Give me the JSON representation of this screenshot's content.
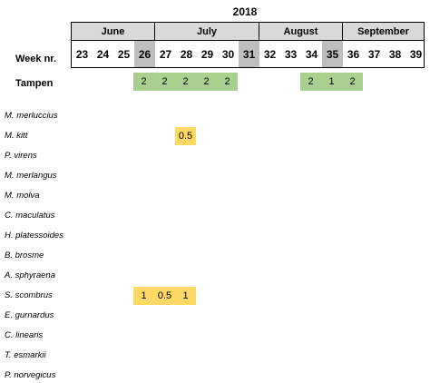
{
  "year": "2018",
  "months": [
    {
      "label": "June"
    },
    {
      "label": "July"
    },
    {
      "label": "August"
    },
    {
      "label": "September"
    }
  ],
  "week_label": "Week nr.",
  "weeks": [
    "23",
    "24",
    "25",
    "26",
    "27",
    "28",
    "29",
    "30",
    "31",
    "32",
    "33",
    "34",
    "35",
    "36",
    "37",
    "38",
    "39"
  ],
  "shaded_weeks": [
    "26",
    "31",
    "35"
  ],
  "tampen": {
    "label": "Tampen",
    "values": {
      "26": "2",
      "27": "2",
      "28": "2",
      "29": "2",
      "30": "2",
      "34": "2",
      "35": "1",
      "36": "2"
    }
  },
  "species": [
    {
      "name": "M. merluccius",
      "values": {}
    },
    {
      "name": "M. kitt",
      "values": {
        "28": "0.5"
      }
    },
    {
      "name": "P. virens",
      "values": {}
    },
    {
      "name": "M. merlangus",
      "values": {}
    },
    {
      "name": "M. molva",
      "values": {}
    },
    {
      "name": "C. maculatus",
      "values": {}
    },
    {
      "name": "H. platessoides",
      "values": {}
    },
    {
      "name": "B. brosme",
      "values": {}
    },
    {
      "name": "A. sphyraena",
      "values": {}
    },
    {
      "name": "S. scombrus",
      "values": {
        "26": "1",
        "27": "0.5",
        "28": "1"
      }
    },
    {
      "name": "E. gurnardus",
      "values": {}
    },
    {
      "name": "C. linearis",
      "values": {}
    },
    {
      "name": "T. esmarkii",
      "values": {}
    },
    {
      "name": "P. norvegicus",
      "values": {}
    }
  ],
  "colors": {
    "tampen": "#a9d08e",
    "species": "#ffd966",
    "shade": "#bfbfbf",
    "month": "#d9d9d9"
  }
}
